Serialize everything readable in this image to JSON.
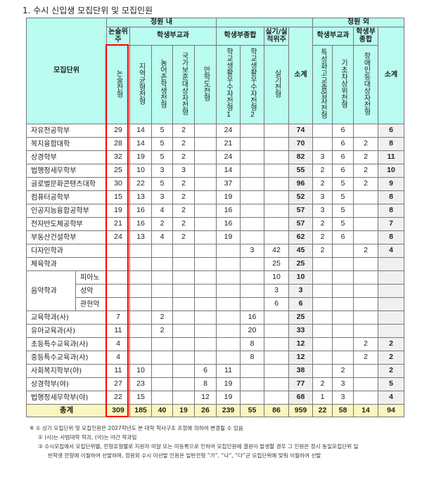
{
  "title": "1. 수시 신입생 모집단위 및 모집인원",
  "header": {
    "unit": "모집단위",
    "in_quota": "정원 내",
    "out_quota": "정원 외",
    "essay_group": "논술위주",
    "record_subject": "학생부교과",
    "record_comprehensive": "학생부종합",
    "practical": "실기/실적위주",
    "out_subject": "학생부교과",
    "out_comprehensive": "학생부종합",
    "subtotal": "소계",
    "columns": [
      "논술전형",
      "지역균형전형",
      "농어촌학생전형",
      "국가보훈대상자전형",
      "만학도전형",
      "학교생활우수자전형1",
      "학교생활우수자전형2",
      "실기전형",
      "소계",
      "특성화고교졸업자전형",
      "기초차상위전형",
      "장애인등대상자전형",
      "소계"
    ]
  },
  "rows": [
    {
      "name": "자유전공학부",
      "v": [
        "29",
        "14",
        "5",
        "2",
        "",
        "24",
        "",
        "",
        "74",
        "",
        "6",
        "",
        "6"
      ]
    },
    {
      "name": "복지융합대학",
      "v": [
        "28",
        "14",
        "5",
        "2",
        "",
        "21",
        "",
        "",
        "70",
        "",
        "6",
        "2",
        "8"
      ]
    },
    {
      "name": "상경학부",
      "v": [
        "32",
        "19",
        "5",
        "2",
        "",
        "24",
        "",
        "",
        "82",
        "3",
        "6",
        "2",
        "11"
      ]
    },
    {
      "name": "법행정세무학부",
      "v": [
        "25",
        "10",
        "3",
        "3",
        "",
        "14",
        "",
        "",
        "55",
        "2",
        "6",
        "2",
        "10"
      ]
    },
    {
      "name": "글로벌문화콘텐츠대학",
      "v": [
        "30",
        "22",
        "5",
        "2",
        "",
        "37",
        "",
        "",
        "96",
        "2",
        "5",
        "2",
        "9"
      ]
    },
    {
      "name": "컴퓨터공학부",
      "v": [
        "15",
        "13",
        "3",
        "2",
        "",
        "19",
        "",
        "",
        "52",
        "3",
        "5",
        "",
        "8"
      ]
    },
    {
      "name": "인공지능융합공학부",
      "v": [
        "19",
        "16",
        "4",
        "2",
        "",
        "16",
        "",
        "",
        "57",
        "3",
        "5",
        "",
        "8"
      ]
    },
    {
      "name": "전자반도체공학부",
      "v": [
        "21",
        "16",
        "2",
        "2",
        "",
        "16",
        "",
        "",
        "57",
        "2",
        "5",
        "",
        "7"
      ]
    },
    {
      "name": "부동산건설학부",
      "v": [
        "24",
        "13",
        "4",
        "2",
        "",
        "19",
        "",
        "",
        "62",
        "2",
        "6",
        "",
        "8"
      ]
    },
    {
      "name": "디자인학과",
      "v": [
        "",
        "",
        "",
        "",
        "",
        "",
        "3",
        "42",
        "45",
        "2",
        "",
        "2",
        "4"
      ]
    },
    {
      "name": "체육학과",
      "v": [
        "",
        "",
        "",
        "",
        "",
        "",
        "",
        "25",
        "25",
        "",
        "",
        "",
        ""
      ]
    }
  ],
  "music": {
    "name": "음악학과",
    "subs": [
      {
        "name": "피아노",
        "v": [
          "",
          "",
          "",
          "",
          "",
          "",
          "",
          "10",
          "10",
          "",
          "",
          "",
          ""
        ]
      },
      {
        "name": "성악",
        "v": [
          "",
          "",
          "",
          "",
          "",
          "",
          "",
          "3",
          "3",
          "",
          "",
          "",
          ""
        ]
      },
      {
        "name": "관현악",
        "v": [
          "",
          "",
          "",
          "",
          "",
          "",
          "",
          "6",
          "6",
          "",
          "",
          "",
          ""
        ]
      }
    ]
  },
  "rows2": [
    {
      "name": "교육학과(사)",
      "v": [
        "7",
        "",
        "2",
        "",
        "",
        "",
        "16",
        "",
        "25",
        "",
        "",
        "",
        ""
      ]
    },
    {
      "name": "유아교육과(사)",
      "v": [
        "11",
        "",
        "2",
        "",
        "",
        "",
        "20",
        "",
        "33",
        "",
        "",
        "",
        ""
      ]
    },
    {
      "name": "초등특수교육과(사)",
      "v": [
        "4",
        "",
        "",
        "",
        "",
        "",
        "8",
        "",
        "12",
        "",
        "",
        "2",
        "2"
      ]
    },
    {
      "name": "중등특수교육과(사)",
      "v": [
        "4",
        "",
        "",
        "",
        "",
        "",
        "8",
        "",
        "12",
        "",
        "",
        "2",
        "2"
      ]
    },
    {
      "name": "사회복지학부(야)",
      "v": [
        "11",
        "10",
        "",
        "",
        "6",
        "11",
        "",
        "",
        "38",
        "",
        "2",
        "",
        "2"
      ]
    },
    {
      "name": "상경학부(야)",
      "v": [
        "27",
        "23",
        "",
        "",
        "8",
        "19",
        "",
        "",
        "77",
        "2",
        "3",
        "",
        "5"
      ]
    },
    {
      "name": "법행정세무학부(야)",
      "v": [
        "22",
        "15",
        "",
        "",
        "12",
        "19",
        "",
        "",
        "68",
        "1",
        "3",
        "",
        "4"
      ]
    }
  ],
  "total": {
    "name": "총계",
    "v": [
      "309",
      "185",
      "40",
      "19",
      "26",
      "239",
      "55",
      "86",
      "959",
      "22",
      "58",
      "14",
      "94"
    ]
  },
  "notes": [
    "※ ① 상기 모집단위 및 모집인원은 2027학년도 본 대학 학사구조 조정에 의하여 변경될 수 있음",
    "② (사)는 사범대학 학과, (야)는 야간 학과임",
    "③ 수시모집에서 모집단위별, 전형유형별로 지원자 미달 또는 미등록으로 인하여 모집인원에 결원이 발생할 경우 그 인원은 정시 동일모집단위 일",
    "반학생 전형에 이월하여 선발하며, 정원외 수시 미선발 인원은 일반전형 “가”, “나”, “다”군 모집단위에 맞춰 이월하여 선발"
  ],
  "colors": {
    "header": "#bafcf0",
    "subtotal": "#f0f0f0",
    "total": "#fbf6bf",
    "highlight": "#ff0000"
  }
}
